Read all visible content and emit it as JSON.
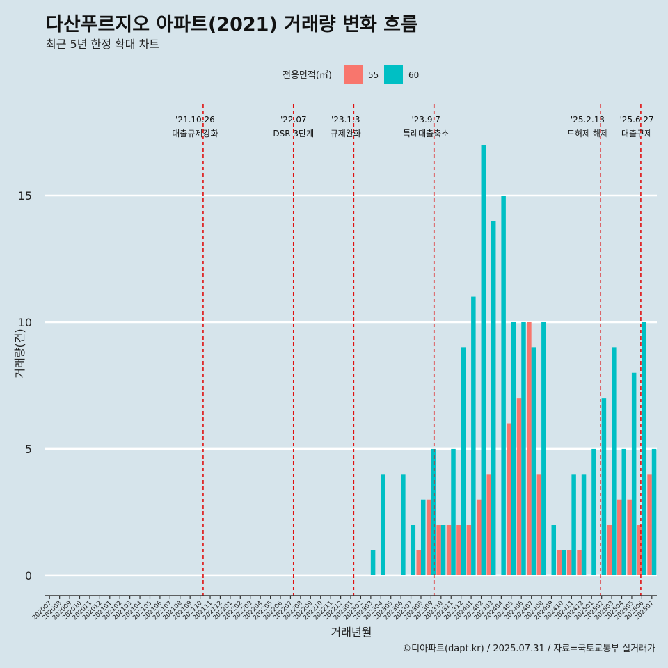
{
  "title": "다산푸르지오 아파트(2021) 거래량 변화 흐름",
  "subtitle": "최근 5년 한정 확대 차트",
  "caption": "©디아파트(dapt.kr) / 2025.07.31 / 자료=국토교통부 실거래가",
  "legend": {
    "title": "전용면적(㎡)",
    "items": [
      {
        "label": "55",
        "color": "#f8766d"
      },
      {
        "label": "60",
        "color": "#00bfc4"
      }
    ]
  },
  "chart_data": {
    "type": "bar",
    "xlabel": "거래년월",
    "ylabel": "거래량(건)",
    "ylim": [
      -0.8,
      18.6
    ],
    "yticks": [
      0,
      5,
      10,
      15
    ],
    "legend_position": "top",
    "categories": [
      "202007",
      "202008",
      "202009",
      "202010",
      "202011",
      "202012",
      "202101",
      "202102",
      "202103",
      "202104",
      "202105",
      "202106",
      "202107",
      "202108",
      "202109",
      "202110",
      "202111",
      "202112",
      "202201",
      "202202",
      "202203",
      "202204",
      "202205",
      "202206",
      "202207",
      "202208",
      "202209",
      "202210",
      "202211",
      "202212",
      "202301",
      "202302",
      "202303",
      "202304",
      "202305",
      "202306",
      "202307",
      "202308",
      "202309",
      "202310",
      "202311",
      "202312",
      "202401",
      "202402",
      "202403",
      "202404",
      "202405",
      "202406",
      "202407",
      "202408",
      "202409",
      "202410",
      "202411",
      "202412",
      "202501",
      "202502",
      "202503",
      "202504",
      "202505",
      "202506",
      "202507"
    ],
    "series": [
      {
        "name": "55",
        "color": "#f8766d",
        "values": [
          0,
          0,
          0,
          0,
          0,
          0,
          0,
          0,
          0,
          0,
          0,
          0,
          0,
          0,
          0,
          0,
          0,
          0,
          0,
          0,
          0,
          0,
          0,
          0,
          0,
          0,
          0,
          0,
          0,
          0,
          0,
          0,
          0,
          0,
          0,
          0,
          0,
          1,
          3,
          2,
          2,
          2,
          2,
          3,
          4,
          0,
          6,
          7,
          10,
          4,
          0,
          1,
          1,
          1,
          0,
          0,
          2,
          3,
          3,
          2,
          4
        ]
      },
      {
        "name": "60",
        "color": "#00bfc4",
        "values": [
          0,
          0,
          0,
          0,
          0,
          0,
          0,
          0,
          0,
          0,
          0,
          0,
          0,
          0,
          0,
          0,
          0,
          0,
          0,
          0,
          0,
          0,
          0,
          0,
          0,
          0,
          0,
          0,
          0,
          0,
          0,
          0,
          1,
          4,
          0,
          4,
          2,
          3,
          5,
          2,
          5,
          9,
          11,
          17,
          14,
          15,
          10,
          10,
          9,
          10,
          2,
          1,
          4,
          4,
          5,
          7,
          9,
          5,
          8,
          10,
          5
        ]
      }
    ],
    "events": [
      {
        "date": "'21.10.26",
        "label": "대출규제강화",
        "index": 15.8,
        "text_index": 15.0
      },
      {
        "date": "'22.07",
        "label": "DSR 3단계",
        "index": 24.8,
        "text_index": 24.8
      },
      {
        "date": "'23.1.3",
        "label": "규제완화",
        "index": 30.8,
        "text_index": 30.0
      },
      {
        "date": "'23.9.7",
        "label": "특례대출축소",
        "index": 38.8,
        "text_index": 38.0
      },
      {
        "date": "'25.2.13",
        "label": "토허제 해제",
        "index": 55.4,
        "text_index": 54.1
      },
      {
        "date": "'25.6.27",
        "label": "대출규제",
        "index": 59.4,
        "text_index": 59.0
      }
    ]
  }
}
